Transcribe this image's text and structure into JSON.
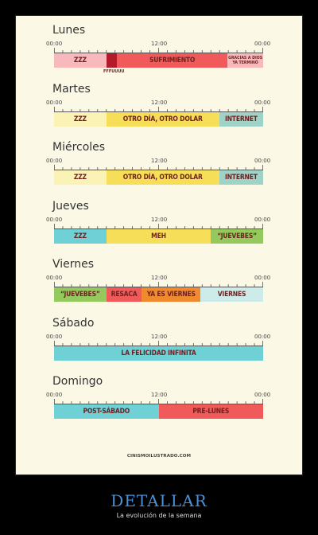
{
  "colors": {
    "pink": "#f8b9bd",
    "darkred": "#b31b2b",
    "red": "#f15a5a",
    "pale": "#fbf2b5",
    "yellow": "#f6de58",
    "teal": "#9fd3c7",
    "cyan": "#6fd1d6",
    "green": "#94c95e",
    "orange": "#f08a2e",
    "lightcyan": "#cdebe8"
  },
  "time_labels": {
    "start": "00:00",
    "mid": "12:00",
    "end": "00:00"
  },
  "days": [
    {
      "name": "Lunes",
      "segments": [
        {
          "label": "ZZZ",
          "fraction": 0.25,
          "color": "pink"
        },
        {
          "label": "",
          "fraction": 0.05,
          "color": "darkred"
        },
        {
          "label": "SUFRIMIENTO",
          "fraction": 0.53,
          "color": "red"
        },
        {
          "label": "GRACIAS A DIOS YA TERMINÓ",
          "fraction": 0.17,
          "color": "pink",
          "small": true
        }
      ],
      "note": "FFFUUUU"
    },
    {
      "name": "Martes",
      "segments": [
        {
          "label": "ZZZ",
          "fraction": 0.25,
          "color": "pale"
        },
        {
          "label": "OTRO DÍA, OTRO DOLAR",
          "fraction": 0.54,
          "color": "yellow"
        },
        {
          "label": "INTERNET",
          "fraction": 0.21,
          "color": "teal"
        }
      ]
    },
    {
      "name": "Miércoles",
      "segments": [
        {
          "label": "ZZZ",
          "fraction": 0.25,
          "color": "pale"
        },
        {
          "label": "OTRO DÍA, OTRO DOLAR",
          "fraction": 0.54,
          "color": "yellow"
        },
        {
          "label": "INTERNET",
          "fraction": 0.21,
          "color": "teal"
        }
      ]
    },
    {
      "name": "Jueves",
      "segments": [
        {
          "label": "ZZZ",
          "fraction": 0.25,
          "color": "cyan"
        },
        {
          "label": "MEH",
          "fraction": 0.5,
          "color": "yellow"
        },
        {
          "label": "“JUEVEBES”",
          "fraction": 0.25,
          "color": "green"
        }
      ]
    },
    {
      "name": "Viernes",
      "segments": [
        {
          "label": "“JUEVEBES”",
          "fraction": 0.25,
          "color": "green"
        },
        {
          "label": "RESACA",
          "fraction": 0.17,
          "color": "red"
        },
        {
          "label": "YA ES VIERNES",
          "fraction": 0.28,
          "color": "orange"
        },
        {
          "label": "VIERNES",
          "fraction": 0.3,
          "color": "lightcyan"
        }
      ]
    },
    {
      "name": "Sábado",
      "segments": [
        {
          "label": "LA FELICIDAD INFINITA",
          "fraction": 1.0,
          "color": "cyan"
        }
      ]
    },
    {
      "name": "Domingo",
      "segments": [
        {
          "label": "POST-SÁBADO",
          "fraction": 0.5,
          "color": "cyan"
        },
        {
          "label": "PRE-LUNES",
          "fraction": 0.5,
          "color": "red"
        }
      ]
    }
  ],
  "credit": "CINISMOILUSTRADO.COM",
  "caption": {
    "title": "DETALLAR",
    "subtitle": "La evolución de la semana"
  }
}
